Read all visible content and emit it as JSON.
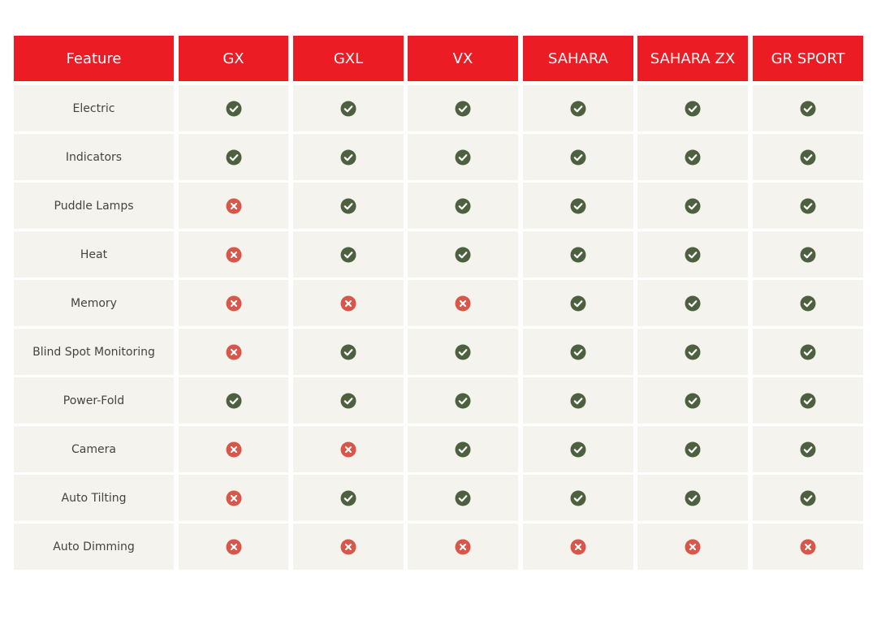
{
  "table": {
    "header": [
      "Feature",
      "GX",
      "GXL",
      "VX",
      "SAHARA",
      "SAHARA ZX",
      "GR SPORT"
    ],
    "rows": [
      {
        "feature": "Electric",
        "availability": [
          true,
          true,
          true,
          true,
          true,
          true
        ]
      },
      {
        "feature": "Indicators",
        "availability": [
          true,
          true,
          true,
          true,
          true,
          true
        ]
      },
      {
        "feature": "Puddle Lamps",
        "availability": [
          false,
          true,
          true,
          true,
          true,
          true
        ]
      },
      {
        "feature": "Heat",
        "availability": [
          false,
          true,
          true,
          true,
          true,
          true
        ]
      },
      {
        "feature": "Memory",
        "availability": [
          false,
          false,
          false,
          true,
          true,
          true
        ]
      },
      {
        "feature": "Blind Spot Monitoring",
        "availability": [
          false,
          true,
          true,
          true,
          true,
          true
        ]
      },
      {
        "feature": "Power-Fold",
        "availability": [
          true,
          true,
          true,
          true,
          true,
          true
        ]
      },
      {
        "feature": "Camera",
        "availability": [
          false,
          false,
          true,
          true,
          true,
          true
        ]
      },
      {
        "feature": "Auto Tilting",
        "availability": [
          false,
          true,
          true,
          true,
          true,
          true
        ]
      },
      {
        "feature": "Auto Dimming",
        "availability": [
          false,
          false,
          false,
          false,
          false,
          false
        ]
      }
    ]
  }
}
